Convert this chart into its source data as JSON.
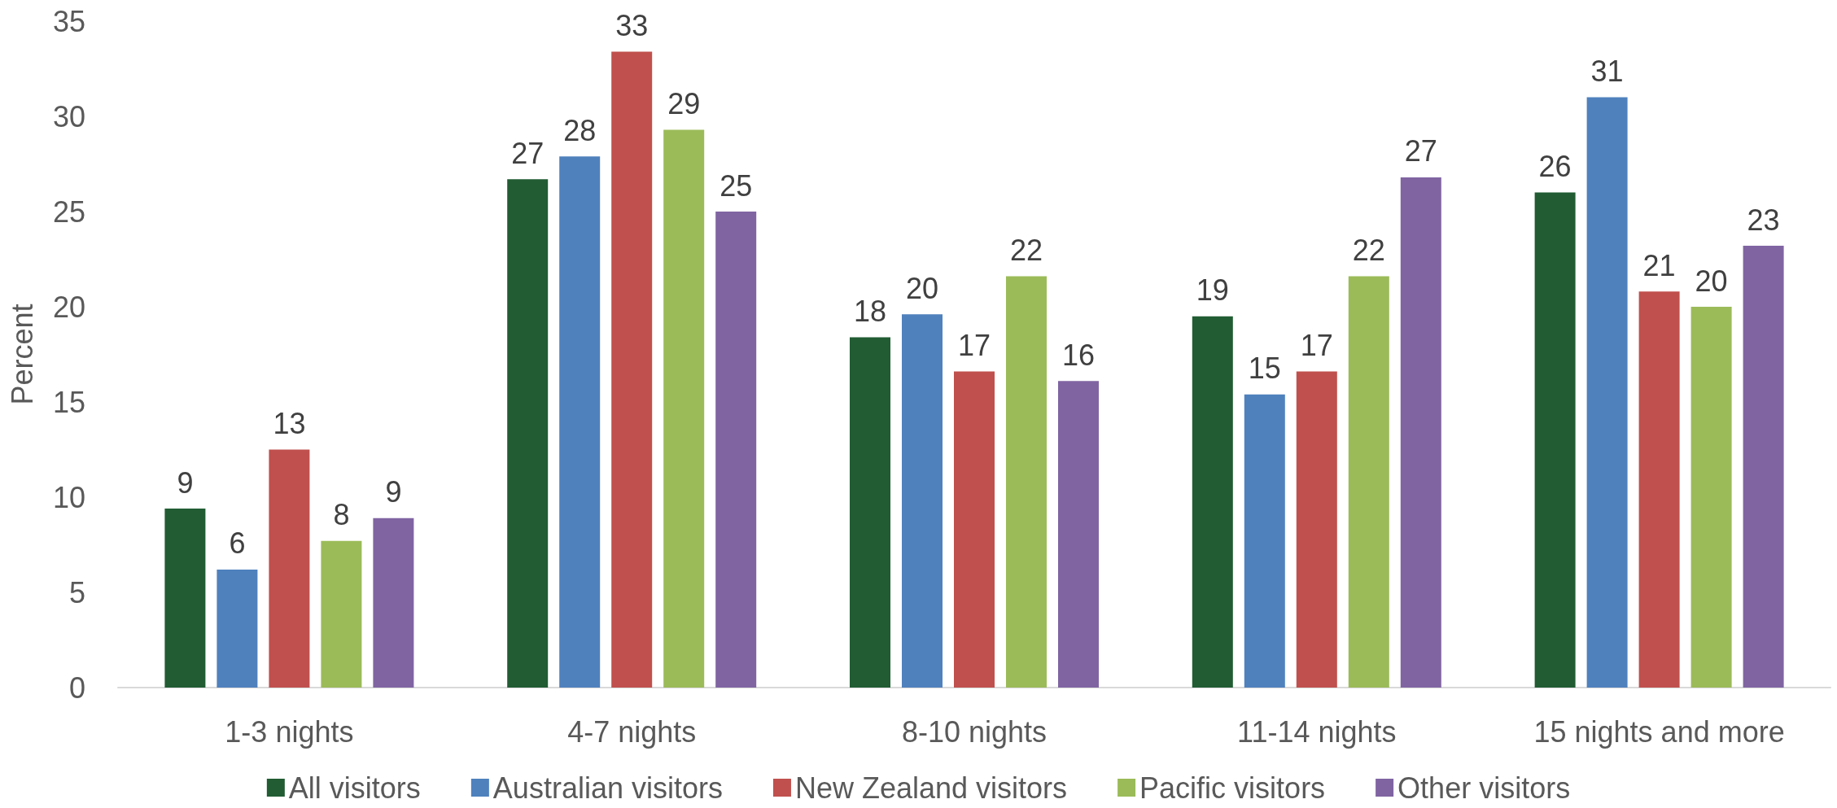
{
  "chart_data": {
    "type": "bar",
    "ylabel": "Percent",
    "categories": [
      "1-3 nights",
      "4-7 nights",
      "8-10 nights",
      "11-14 nights",
      "15 nights and more"
    ],
    "series": [
      {
        "name": "All visitors",
        "color": "#215c33",
        "values": [
          9.4,
          26.7,
          18.4,
          19.5,
          26.0
        ],
        "value_labels": [
          "9",
          "27",
          "18",
          "19",
          "26"
        ]
      },
      {
        "name": "Australian visitors",
        "color": "#4f81bd",
        "values": [
          6.2,
          27.9,
          19.6,
          15.4,
          31.0
        ],
        "value_labels": [
          "6",
          "28",
          "20",
          "15",
          "31"
        ]
      },
      {
        "name": "New Zealand visitors",
        "color": "#c0504d",
        "values": [
          12.5,
          33.4,
          16.6,
          16.6,
          20.8
        ],
        "value_labels": [
          "13",
          "33",
          "17",
          "17",
          "21"
        ]
      },
      {
        "name": "Pacific visitors",
        "color": "#9bbb59",
        "values": [
          7.7,
          29.3,
          21.6,
          21.6,
          20.0
        ],
        "value_labels": [
          "8",
          "29",
          "22",
          "22",
          "20"
        ]
      },
      {
        "name": "Other visitors",
        "color": "#8064a2",
        "values": [
          8.9,
          25.0,
          16.1,
          26.8,
          23.2
        ],
        "value_labels": [
          "9",
          "25",
          "16",
          "27",
          "23"
        ]
      }
    ],
    "ylim": [
      0,
      35
    ],
    "yticks": [
      0,
      5,
      10,
      15,
      20,
      25,
      30,
      35
    ],
    "legend": "bottom"
  }
}
